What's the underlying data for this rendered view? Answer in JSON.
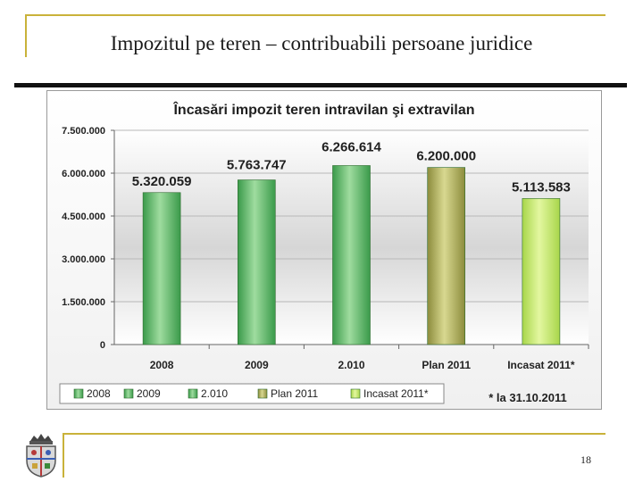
{
  "slide": {
    "title": "Impozitul pe teren – contribuabili persoane juridice",
    "page_number": "18"
  },
  "colors": {
    "frame": "#c9b23a",
    "bar_dark_green": "#3a9a4a",
    "bar_olive": "#8c8c3c",
    "bar_light_green": "#a8d64a"
  },
  "chart_data": {
    "type": "bar",
    "title": "Încasări impozit teren intravilan şi extravilan",
    "categories": [
      "2008",
      "2009",
      "2.010",
      "Plan 2011",
      "Incasat 2011*"
    ],
    "values": [
      5320059,
      5763747,
      6266614,
      6200000,
      5113583
    ],
    "value_labels": [
      "5.320.059",
      "5.763.747",
      "6.266.614",
      "6.200.000",
      "5.113.583"
    ],
    "bar_colors": [
      "#3a9a4a",
      "#3a9a4a",
      "#3a9a4a",
      "#8c8c3c",
      "#a8d64a"
    ],
    "ylim": [
      0,
      7500000
    ],
    "yticks": [
      0,
      1500000,
      3000000,
      4500000,
      6000000,
      7500000
    ],
    "ytick_labels": [
      "0",
      "1.500.000",
      "3.000.000",
      "4.500.000",
      "6.000.000",
      "7.500.000"
    ],
    "xlabel": "",
    "ylabel": "",
    "grid": true,
    "legend": [
      "2008",
      "2009",
      "2.010",
      "Plan 2011",
      "Incasat 2011*"
    ],
    "legend_position": "bottom",
    "note": "* la 31.10.2011"
  }
}
